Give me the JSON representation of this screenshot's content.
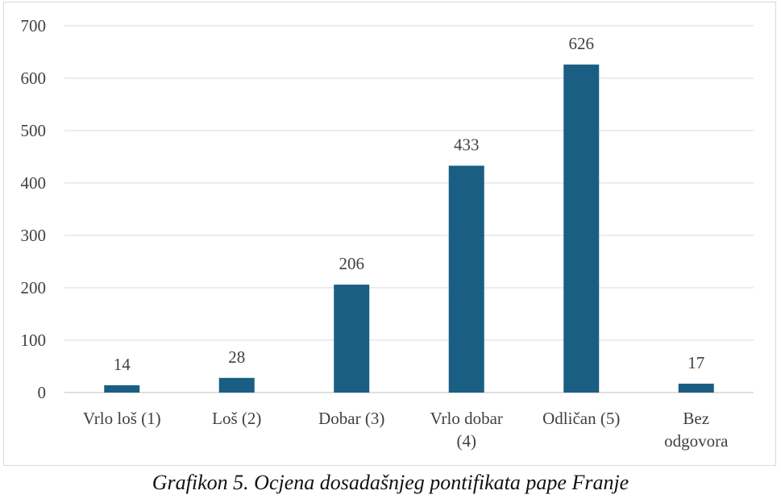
{
  "chart_data": {
    "type": "bar",
    "categories": [
      [
        "Vrlo loš (1)"
      ],
      [
        "Loš (2)"
      ],
      [
        "Dobar (3)"
      ],
      [
        "Vrlo dobar",
        "(4)"
      ],
      [
        "Odličan (5)"
      ],
      [
        "Bez",
        "odgovora"
      ]
    ],
    "values": [
      14,
      28,
      206,
      433,
      626,
      17
    ],
    "ylim": [
      0,
      700
    ],
    "yticks": [
      0,
      100,
      200,
      300,
      400,
      500,
      600,
      700
    ],
    "grid": true,
    "legend": "none",
    "bar_color": "#1a5e84",
    "data_labels": true
  },
  "caption": "Grafikon 5. Ocjena dosadašnjeg pontifikata pape Franje"
}
